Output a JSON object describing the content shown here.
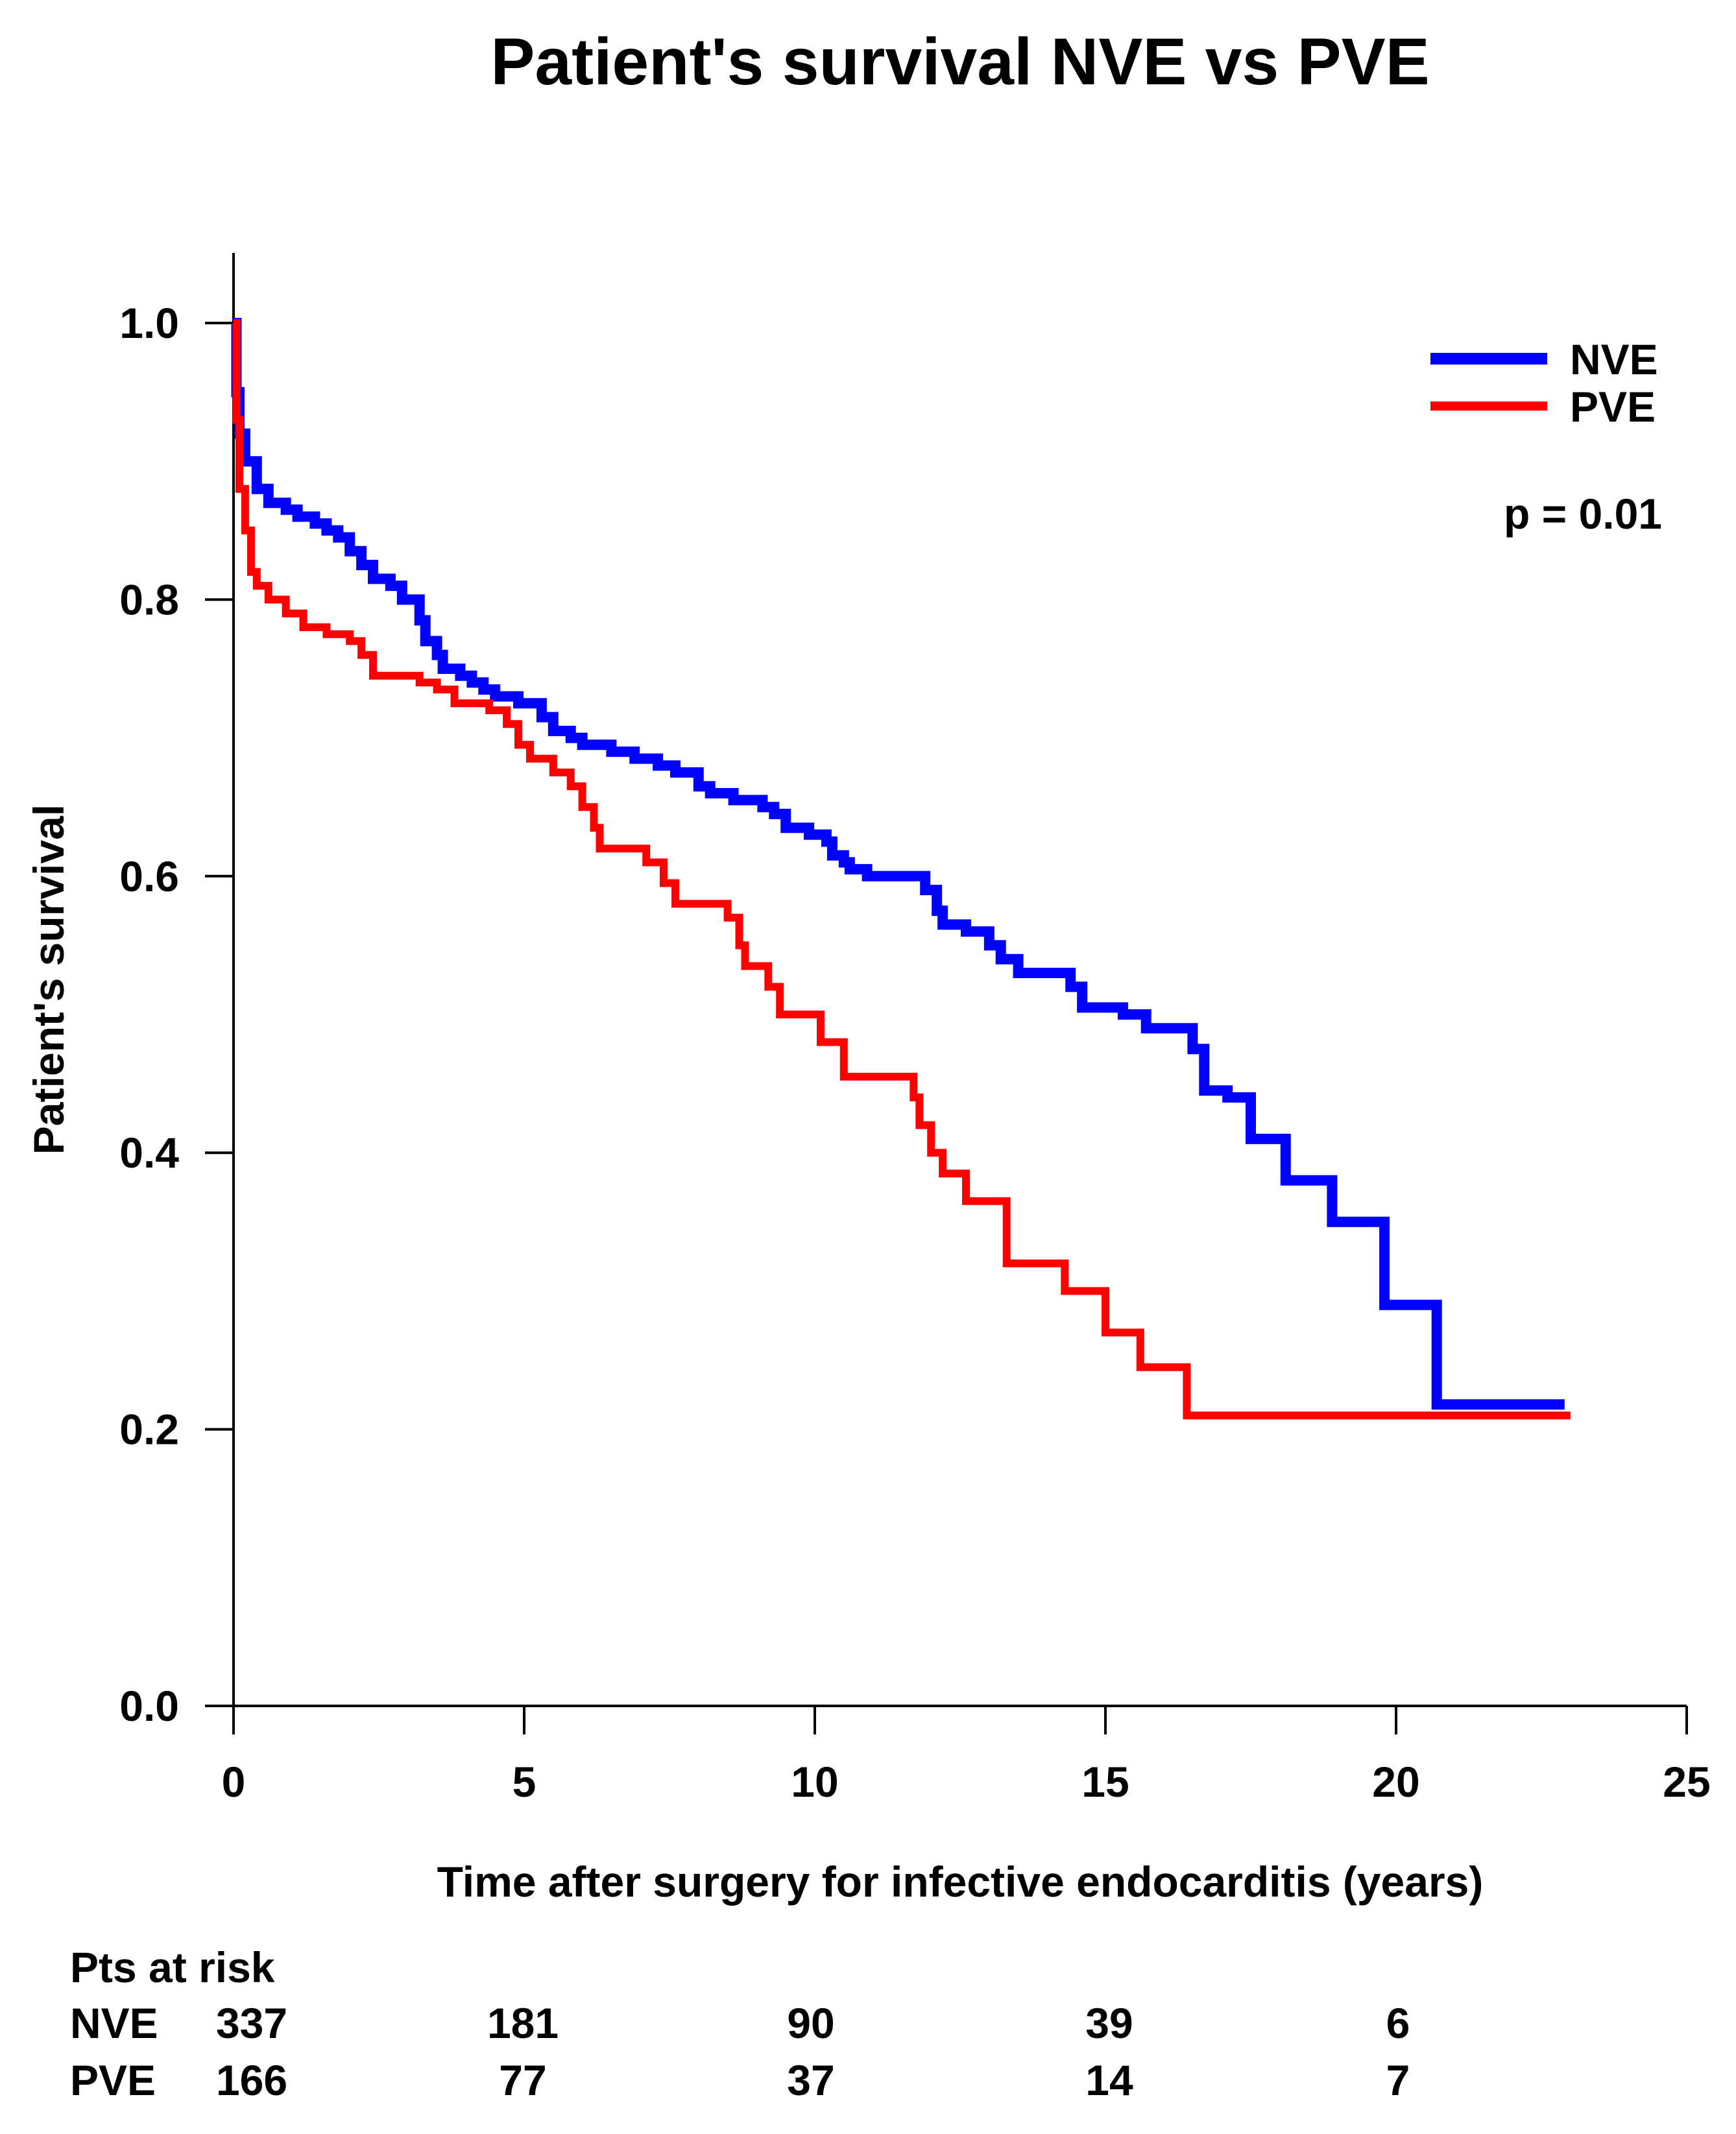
{
  "chart_data": {
    "type": "line",
    "step": true,
    "title": "Patient's survival NVE vs PVE",
    "xlabel": "Time after surgery for infective endocarditis (years)",
    "ylabel": "Patient's survival",
    "xlim": [
      0,
      25
    ],
    "ylim": [
      0.0,
      1.0
    ],
    "xticks": [
      "0",
      "5",
      "10",
      "15",
      "20",
      "25"
    ],
    "yticks": [
      "0.0",
      "0.2",
      "0.4",
      "0.6",
      "0.8",
      "1.0"
    ],
    "legend_position": "top-right",
    "annotation": "p = 0.01",
    "series": [
      {
        "name": "NVE",
        "color": "#0000ff",
        "points": [
          [
            0,
            1.0
          ],
          [
            0.05,
            0.95
          ],
          [
            0.1,
            0.92
          ],
          [
            0.2,
            0.9
          ],
          [
            0.4,
            0.88
          ],
          [
            0.6,
            0.87
          ],
          [
            0.9,
            0.865
          ],
          [
            1.1,
            0.86
          ],
          [
            1.4,
            0.855
          ],
          [
            1.6,
            0.85
          ],
          [
            1.8,
            0.845
          ],
          [
            2.0,
            0.835
          ],
          [
            2.2,
            0.825
          ],
          [
            2.4,
            0.815
          ],
          [
            2.7,
            0.81
          ],
          [
            2.9,
            0.8
          ],
          [
            3.2,
            0.785
          ],
          [
            3.3,
            0.77
          ],
          [
            3.5,
            0.76
          ],
          [
            3.6,
            0.75
          ],
          [
            3.9,
            0.745
          ],
          [
            4.1,
            0.74
          ],
          [
            4.3,
            0.735
          ],
          [
            4.5,
            0.73
          ],
          [
            4.9,
            0.725
          ],
          [
            5.3,
            0.715
          ],
          [
            5.5,
            0.705
          ],
          [
            5.8,
            0.7
          ],
          [
            6.0,
            0.695
          ],
          [
            6.5,
            0.69
          ],
          [
            6.9,
            0.685
          ],
          [
            7.3,
            0.68
          ],
          [
            7.6,
            0.675
          ],
          [
            8.0,
            0.665
          ],
          [
            8.2,
            0.66
          ],
          [
            8.6,
            0.655
          ],
          [
            9.1,
            0.65
          ],
          [
            9.3,
            0.645
          ],
          [
            9.5,
            0.635
          ],
          [
            9.9,
            0.63
          ],
          [
            10.2,
            0.625
          ],
          [
            10.3,
            0.615
          ],
          [
            10.5,
            0.61
          ],
          [
            10.6,
            0.605
          ],
          [
            10.9,
            0.6
          ],
          [
            11.9,
            0.59
          ],
          [
            12.1,
            0.575
          ],
          [
            12.2,
            0.565
          ],
          [
            12.6,
            0.56
          ],
          [
            13.0,
            0.55
          ],
          [
            13.2,
            0.54
          ],
          [
            13.5,
            0.53
          ],
          [
            14.4,
            0.52
          ],
          [
            14.6,
            0.505
          ],
          [
            15.3,
            0.5
          ],
          [
            15.7,
            0.49
          ],
          [
            16.5,
            0.475
          ],
          [
            16.7,
            0.445
          ],
          [
            17.1,
            0.44
          ],
          [
            17.5,
            0.41
          ],
          [
            18.1,
            0.38
          ],
          [
            18.9,
            0.35
          ],
          [
            19.8,
            0.29
          ],
          [
            20.7,
            0.218
          ],
          [
            22.9,
            0.218
          ]
        ]
      },
      {
        "name": "PVE",
        "color": "#ff0000",
        "points": [
          [
            0,
            1.0
          ],
          [
            0.05,
            0.93
          ],
          [
            0.1,
            0.88
          ],
          [
            0.2,
            0.85
          ],
          [
            0.3,
            0.82
          ],
          [
            0.4,
            0.81
          ],
          [
            0.6,
            0.8
          ],
          [
            0.9,
            0.79
          ],
          [
            1.2,
            0.78
          ],
          [
            1.6,
            0.775
          ],
          [
            2.0,
            0.77
          ],
          [
            2.2,
            0.76
          ],
          [
            2.4,
            0.745
          ],
          [
            3.2,
            0.74
          ],
          [
            3.5,
            0.735
          ],
          [
            3.8,
            0.725
          ],
          [
            4.4,
            0.72
          ],
          [
            4.7,
            0.71
          ],
          [
            4.9,
            0.695
          ],
          [
            5.1,
            0.685
          ],
          [
            5.5,
            0.675
          ],
          [
            5.8,
            0.665
          ],
          [
            6.0,
            0.65
          ],
          [
            6.2,
            0.635
          ],
          [
            6.3,
            0.62
          ],
          [
            7.1,
            0.61
          ],
          [
            7.4,
            0.595
          ],
          [
            7.6,
            0.58
          ],
          [
            8.5,
            0.57
          ],
          [
            8.7,
            0.55
          ],
          [
            8.8,
            0.535
          ],
          [
            9.2,
            0.52
          ],
          [
            9.4,
            0.5
          ],
          [
            10.1,
            0.48
          ],
          [
            10.5,
            0.455
          ],
          [
            11.7,
            0.44
          ],
          [
            11.8,
            0.42
          ],
          [
            12.0,
            0.4
          ],
          [
            12.2,
            0.385
          ],
          [
            12.6,
            0.365
          ],
          [
            13.3,
            0.32
          ],
          [
            14.3,
            0.3
          ],
          [
            15.0,
            0.27
          ],
          [
            15.6,
            0.245
          ],
          [
            16.4,
            0.21
          ],
          [
            23.0,
            0.21
          ]
        ]
      }
    ],
    "at_risk": {
      "header": "Pts at risk",
      "times": [
        0,
        5,
        10,
        15,
        20
      ],
      "rows": [
        {
          "label": "NVE",
          "values": [
            "337",
            "181",
            "90",
            "39",
            "6"
          ]
        },
        {
          "label": "PVE",
          "values": [
            "166",
            "77",
            "37",
            "14",
            "7"
          ]
        }
      ]
    }
  }
}
